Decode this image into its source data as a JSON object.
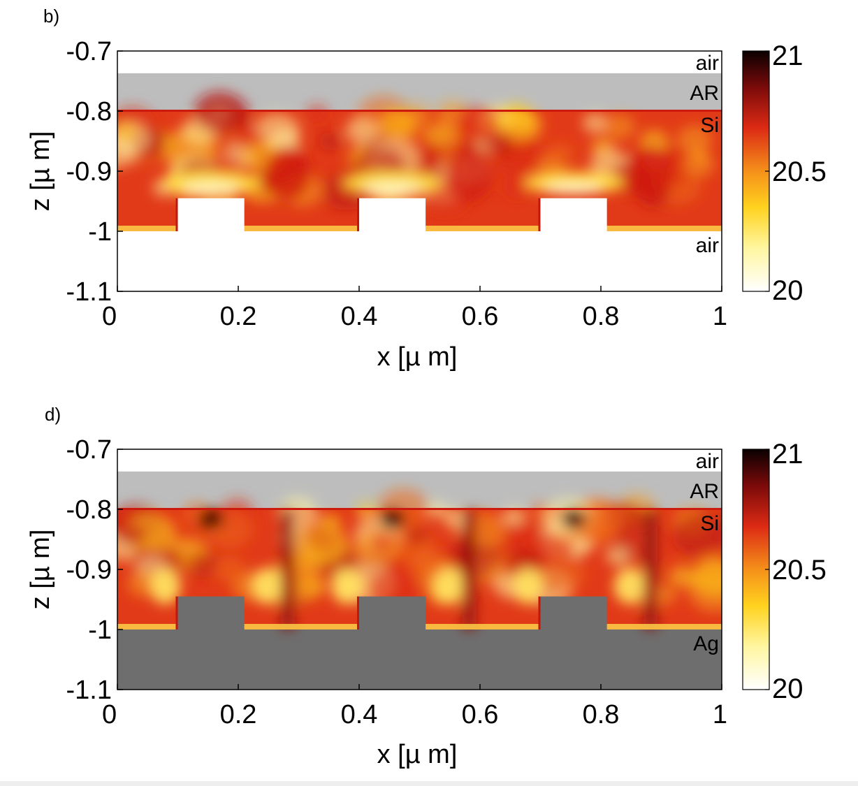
{
  "chart_data": [
    {
      "type": "heatmap",
      "panel": "b)",
      "xlabel": "x [µ m]",
      "ylabel": "z [µ m]",
      "xlim": [
        0,
        1
      ],
      "ylim": [
        -1.1,
        -0.7
      ],
      "xticks": [
        "0",
        "0.2",
        "0.4",
        "0.6",
        "0.8",
        "1"
      ],
      "xtick_values": [
        0,
        0.2,
        0.4,
        0.6,
        0.8,
        1
      ],
      "yticks": [
        "-0.7",
        "-0.8",
        "-0.9",
        "-1",
        "-1.1"
      ],
      "ytick_values": [
        -0.7,
        -0.8,
        -0.9,
        -1,
        -1.1
      ],
      "colorbar": {
        "min": 20,
        "max": 21,
        "ticks": [
          "21",
          "20.5",
          "20"
        ],
        "tick_values": [
          21,
          20.5,
          20
        ],
        "colormap": "hot (inverted)"
      },
      "regions": [
        {
          "label": "air",
          "z_top": -0.7,
          "z_bottom": -0.737,
          "color": "#ffffff"
        },
        {
          "label": "AR",
          "z_top": -0.737,
          "z_bottom": -0.8,
          "color": "#bdbdbd"
        },
        {
          "label": "Si",
          "z_top": -0.8,
          "z_bottom": -1.0,
          "color": "field"
        },
        {
          "label": "air",
          "z_top": -1.0,
          "z_bottom": -1.1,
          "color": "#ffffff"
        }
      ],
      "grating_teeth_x": [
        [
          0.1,
          0.21
        ],
        [
          0.4,
          0.51
        ],
        [
          0.7,
          0.81
        ]
      ],
      "grating_tooth_top_z": -0.945,
      "bottom_material_color": "#ffffff"
    },
    {
      "type": "heatmap",
      "panel": "d)",
      "xlabel": "x [µ m]",
      "ylabel": "z [µ m]",
      "xlim": [
        0,
        1
      ],
      "ylim": [
        -1.1,
        -0.7
      ],
      "xticks": [
        "0",
        "0.2",
        "0.4",
        "0.6",
        "0.8",
        "1"
      ],
      "xtick_values": [
        0,
        0.2,
        0.4,
        0.6,
        0.8,
        1
      ],
      "yticks": [
        "-0.7",
        "-0.8",
        "-0.9",
        "-1",
        "-1.1"
      ],
      "ytick_values": [
        -0.7,
        -0.8,
        -0.9,
        -1,
        -1.1
      ],
      "colorbar": {
        "min": 20,
        "max": 21,
        "ticks": [
          "21",
          "20.5",
          "20"
        ],
        "tick_values": [
          21,
          20.5,
          20
        ],
        "colormap": "hot (inverted)"
      },
      "regions": [
        {
          "label": "air",
          "z_top": -0.7,
          "z_bottom": -0.737,
          "color": "#ffffff"
        },
        {
          "label": "AR",
          "z_top": -0.737,
          "z_bottom": -0.8,
          "color": "#bdbdbd"
        },
        {
          "label": "Si",
          "z_top": -0.8,
          "z_bottom": -1.0,
          "color": "field"
        },
        {
          "label": "Ag",
          "z_top": -1.0,
          "z_bottom": -1.1,
          "color": "#6e6e6e"
        }
      ],
      "grating_teeth_x": [
        [
          0.1,
          0.21
        ],
        [
          0.4,
          0.51
        ],
        [
          0.7,
          0.81
        ]
      ],
      "grating_tooth_top_z": -0.945,
      "bottom_material_color": "#6e6e6e"
    }
  ]
}
